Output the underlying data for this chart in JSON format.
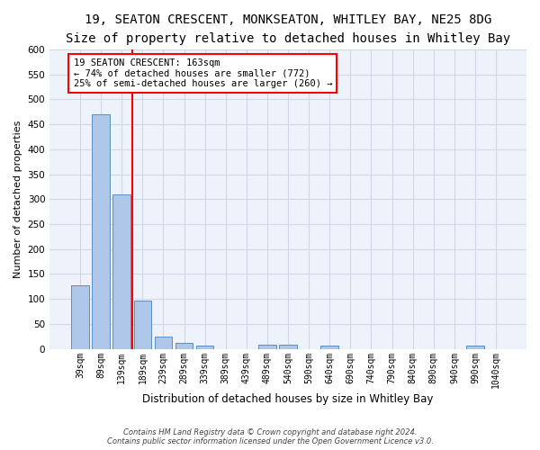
{
  "title_line1": "19, SEATON CRESCENT, MONKSEATON, WHITLEY BAY, NE25 8DG",
  "title_line2": "Size of property relative to detached houses in Whitley Bay",
  "xlabel": "Distribution of detached houses by size in Whitley Bay",
  "ylabel": "Number of detached properties",
  "footer_line1": "Contains HM Land Registry data © Crown copyright and database right 2024.",
  "footer_line2": "Contains public sector information licensed under the Open Government Licence v3.0.",
  "bin_labels": [
    "39sqm",
    "89sqm",
    "139sqm",
    "189sqm",
    "239sqm",
    "289sqm",
    "339sqm",
    "389sqm",
    "439sqm",
    "489sqm",
    "540sqm",
    "590sqm",
    "640sqm",
    "690sqm",
    "740sqm",
    "790sqm",
    "840sqm",
    "890sqm",
    "940sqm",
    "990sqm",
    "1040sqm"
  ],
  "bar_values": [
    128,
    470,
    310,
    96,
    25,
    11,
    7,
    0,
    0,
    8,
    8,
    0,
    7,
    0,
    0,
    0,
    0,
    0,
    0,
    6,
    0
  ],
  "bar_color": "#aec6e8",
  "bar_edge_color": "#5a8fc2",
  "vline_color": "red",
  "annotation_text": "19 SEATON CRESCENT: 163sqm\n← 74% of detached houses are smaller (772)\n25% of semi-detached houses are larger (260) →",
  "annotation_box_color": "white",
  "annotation_box_edge": "red",
  "ylim": [
    0,
    600
  ],
  "yticks": [
    0,
    50,
    100,
    150,
    200,
    250,
    300,
    350,
    400,
    450,
    500,
    550,
    600
  ],
  "grid_color": "#d0d8e8",
  "bg_color": "#eef2fa",
  "title_fontsize": 10,
  "subtitle_fontsize": 9,
  "ann_fontsize": 7.5,
  "xlabel_fontsize": 8.5,
  "ylabel_fontsize": 8,
  "footer_fontsize": 6,
  "tick_fontsize": 7
}
